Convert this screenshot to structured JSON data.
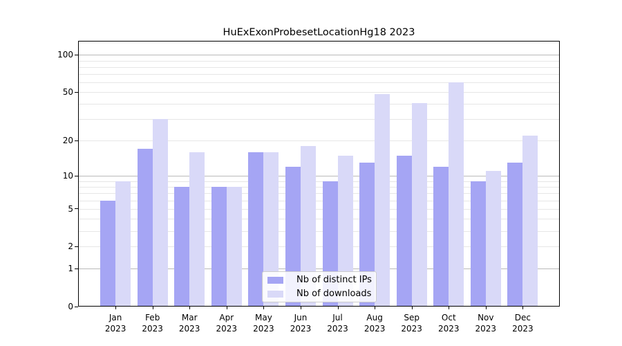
{
  "title": "HuExExonProbesetLocationHg18 2023",
  "chart_data": {
    "type": "bar",
    "title": "HuExExonProbesetLocationHg18 2023",
    "x_categories": [
      "Jan",
      "Feb",
      "Mar",
      "Apr",
      "May",
      "Jun",
      "Jul",
      "Aug",
      "Sep",
      "Oct",
      "Nov",
      "Dec"
    ],
    "x_year_label": "2023",
    "series": [
      {
        "name": "Nb of distinct IPs",
        "color": "#a5a5f4",
        "values": [
          6,
          17,
          8,
          8,
          16,
          12,
          9,
          13,
          15,
          12,
          9,
          13
        ]
      },
      {
        "name": "Nb of downloads",
        "color": "#d9d9f8",
        "values": [
          9,
          30,
          16,
          8,
          16,
          18,
          15,
          48,
          41,
          60,
          11,
          22
        ]
      }
    ],
    "y_scale": "log1p",
    "y_tick_labels": [
      0,
      1,
      2,
      5,
      10,
      20,
      50,
      100
    ],
    "y_major_gridlines": [
      1,
      10,
      100
    ],
    "y_minor_gridlines": [
      2,
      3,
      4,
      5,
      6,
      7,
      8,
      9,
      20,
      30,
      40,
      50,
      60,
      70,
      80,
      90
    ],
    "ylim": [
      0,
      130
    ],
    "xlabel": "",
    "ylabel": "",
    "grid": true,
    "legend_position": "lower center",
    "legend_entries": [
      "Nb of distinct IPs",
      "Nb of downloads"
    ]
  }
}
